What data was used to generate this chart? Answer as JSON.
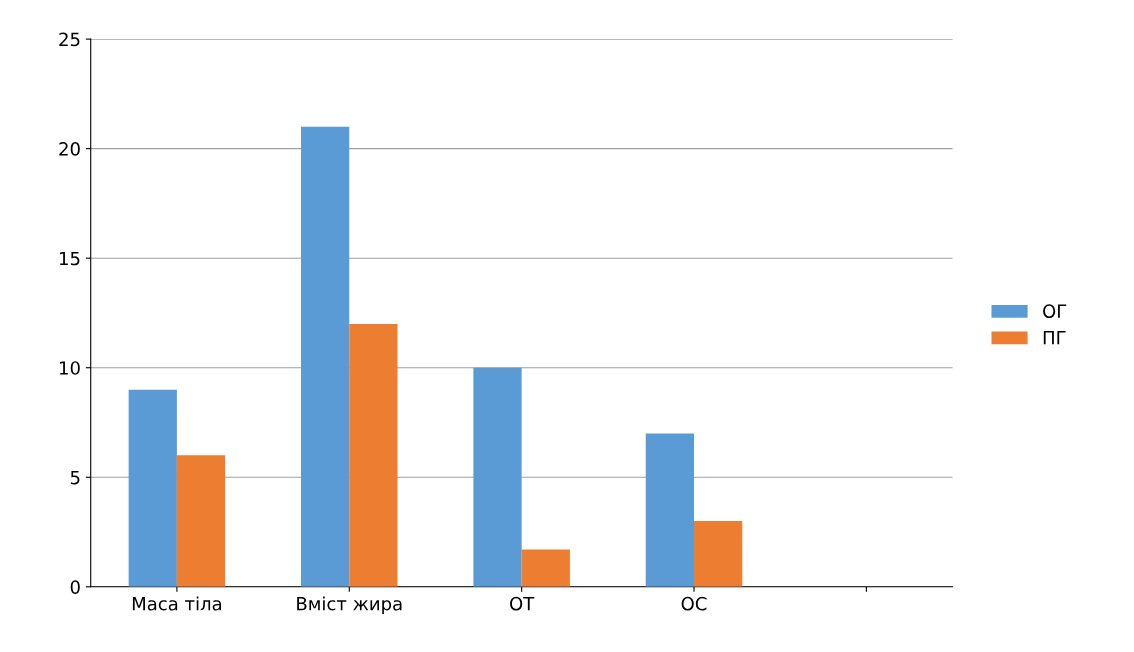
{
  "chart_data": {
    "type": "bar",
    "categories": [
      "Маса тіла",
      "Вміст жира",
      "ОТ",
      "ОС",
      null
    ],
    "series": [
      {
        "name": "ОГ",
        "color": "#5b9bd5",
        "values": [
          9,
          21,
          10,
          7,
          null
        ]
      },
      {
        "name": "ПГ",
        "color": "#ed7d31",
        "values": [
          6,
          12,
          1.7,
          3,
          null
        ]
      }
    ],
    "ylim": [
      0,
      25
    ],
    "yticks": [
      0,
      5,
      10,
      15,
      20,
      25
    ],
    "grid": "y",
    "legend": "right"
  }
}
